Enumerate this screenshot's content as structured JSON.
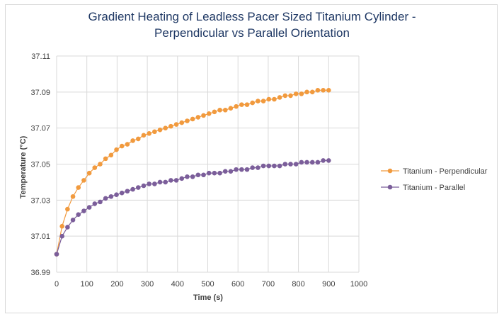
{
  "chart_data": {
    "type": "line",
    "title_line1": "Gradient Heating of Leadless Pacer Sized Titanium Cylinder -",
    "title_line2": "Perpendicular vs Parallel Orientation",
    "xlabel": "Time (s)",
    "ylabel": "Temperature (°C)",
    "xlim": [
      0,
      1000
    ],
    "ylim": [
      36.99,
      37.11
    ],
    "xticks": [
      "0",
      "100",
      "200",
      "300",
      "400",
      "500",
      "600",
      "700",
      "800",
      "900",
      "1000"
    ],
    "yticks": [
      "36.99",
      "37.01",
      "37.03",
      "37.05",
      "37.07",
      "37.09",
      "37.11"
    ],
    "grid": true,
    "legend_position": "right",
    "series": [
      {
        "name": "Titanium - Perpendicular",
        "color": "#f19a3e",
        "x": [
          0,
          18,
          36,
          54,
          72,
          90,
          108,
          126,
          144,
          162,
          180,
          198,
          216,
          234,
          252,
          270,
          288,
          306,
          324,
          342,
          360,
          378,
          396,
          414,
          432,
          450,
          468,
          486,
          504,
          522,
          540,
          558,
          576,
          594,
          612,
          630,
          648,
          666,
          684,
          702,
          720,
          738,
          756,
          774,
          792,
          810,
          828,
          846,
          864,
          882,
          900
        ],
        "y": [
          37.0,
          37.0155,
          37.025,
          37.032,
          37.037,
          37.041,
          37.045,
          37.048,
          37.05,
          37.053,
          37.055,
          37.058,
          37.06,
          37.061,
          37.063,
          37.064,
          37.066,
          37.067,
          37.068,
          37.069,
          37.07,
          37.071,
          37.072,
          37.073,
          37.074,
          37.075,
          37.076,
          37.077,
          37.078,
          37.079,
          37.08,
          37.08,
          37.081,
          37.082,
          37.083,
          37.083,
          37.084,
          37.085,
          37.085,
          37.086,
          37.086,
          37.087,
          37.088,
          37.088,
          37.089,
          37.089,
          37.09,
          37.09,
          37.091,
          37.091,
          37.091
        ]
      },
      {
        "name": "Titanium - Parallel",
        "color": "#7b5e9a",
        "x": [
          0,
          18,
          36,
          54,
          72,
          90,
          108,
          126,
          144,
          162,
          180,
          198,
          216,
          234,
          252,
          270,
          288,
          306,
          324,
          342,
          360,
          378,
          396,
          414,
          432,
          450,
          468,
          486,
          504,
          522,
          540,
          558,
          576,
          594,
          612,
          630,
          648,
          666,
          684,
          702,
          720,
          738,
          756,
          774,
          792,
          810,
          828,
          846,
          864,
          882,
          900
        ],
        "y": [
          37.0,
          37.01,
          37.015,
          37.019,
          37.022,
          37.024,
          37.026,
          37.028,
          37.029,
          37.031,
          37.032,
          37.033,
          37.034,
          37.035,
          37.036,
          37.037,
          37.038,
          37.039,
          37.039,
          37.04,
          37.04,
          37.041,
          37.041,
          37.042,
          37.043,
          37.043,
          37.044,
          37.044,
          37.045,
          37.045,
          37.045,
          37.046,
          37.046,
          37.047,
          37.047,
          37.047,
          37.048,
          37.048,
          37.049,
          37.049,
          37.049,
          37.049,
          37.05,
          37.05,
          37.05,
          37.051,
          37.051,
          37.051,
          37.051,
          37.052,
          37.052
        ]
      }
    ]
  }
}
